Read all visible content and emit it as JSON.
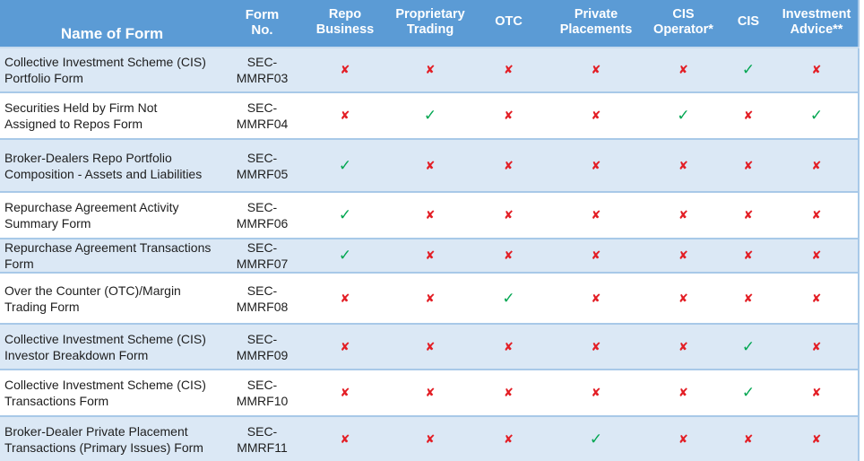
{
  "table": {
    "columns": [
      {
        "id": "name_of_form",
        "label": "Name of Form"
      },
      {
        "id": "form_no",
        "label": "Form No."
      },
      {
        "id": "repo_business",
        "label": "Repo Business"
      },
      {
        "id": "proprietary_trading",
        "label": "Proprietary Trading"
      },
      {
        "id": "otc",
        "label": "OTC"
      },
      {
        "id": "private_placements",
        "label": "Private Placements"
      },
      {
        "id": "cis_operator",
        "label": "CIS Operator*"
      },
      {
        "id": "cis",
        "label": "CIS"
      },
      {
        "id": "investment_advice",
        "label": "Investment Advice**"
      }
    ],
    "mark_glyphs": {
      "check": "✓",
      "cross": "✘"
    },
    "colors": {
      "header_bg": "#5b9bd5",
      "band_bg": "#dbe8f5",
      "border": "#a8c9e8",
      "check": "#00a651",
      "cross": "#e31e25"
    },
    "rows": [
      {
        "name": "Collective Investment Scheme (CIS) Portfolio Form",
        "form_no": "SEC-MMRF03",
        "marks": [
          "cross",
          "cross",
          "cross",
          "cross",
          "cross",
          "check",
          "cross"
        ]
      },
      {
        "name": "Securities Held by Firm Not Assigned to Repos Form",
        "form_no": "SEC-MMRF04",
        "marks": [
          "cross",
          "check",
          "cross",
          "cross",
          "check",
          "cross",
          "check"
        ]
      },
      {
        "name": "Broker-Dealers Repo Portfolio Composition - Assets and Liabilities",
        "form_no": "SEC-MMRF05",
        "marks": [
          "check",
          "cross",
          "cross",
          "cross",
          "cross",
          "cross",
          "cross"
        ]
      },
      {
        "name": "Repurchase Agreement Activity Summary  Form",
        "form_no": "SEC-MMRF06",
        "marks": [
          "check",
          "cross",
          "cross",
          "cross",
          "cross",
          "cross",
          "cross"
        ]
      },
      {
        "name": "Repurchase Agreement Transactions Form",
        "form_no": "SEC-MMRF07",
        "marks": [
          "check",
          "cross",
          "cross",
          "cross",
          "cross",
          "cross",
          "cross"
        ]
      },
      {
        "name": "Over the Counter (OTC)/Margin Trading Form",
        "form_no": "SEC-MMRF08",
        "marks": [
          "cross",
          "cross",
          "check",
          "cross",
          "cross",
          "cross",
          "cross"
        ]
      },
      {
        "name": "Collective Investment Scheme (CIS) Investor Breakdown Form",
        "form_no": "SEC-MMRF09",
        "marks": [
          "cross",
          "cross",
          "cross",
          "cross",
          "cross",
          "check",
          "cross"
        ]
      },
      {
        "name": "Collective Investment Scheme (CIS) Transactions Form",
        "form_no": "SEC-MMRF10",
        "marks": [
          "cross",
          "cross",
          "cross",
          "cross",
          "cross",
          "check",
          "cross"
        ]
      },
      {
        "name": "Broker-Dealer Private Placement Transactions (Primary Issues) Form",
        "form_no": "SEC-MMRF11",
        "marks": [
          "cross",
          "cross",
          "cross",
          "check",
          "cross",
          "cross",
          "cross"
        ]
      }
    ]
  }
}
